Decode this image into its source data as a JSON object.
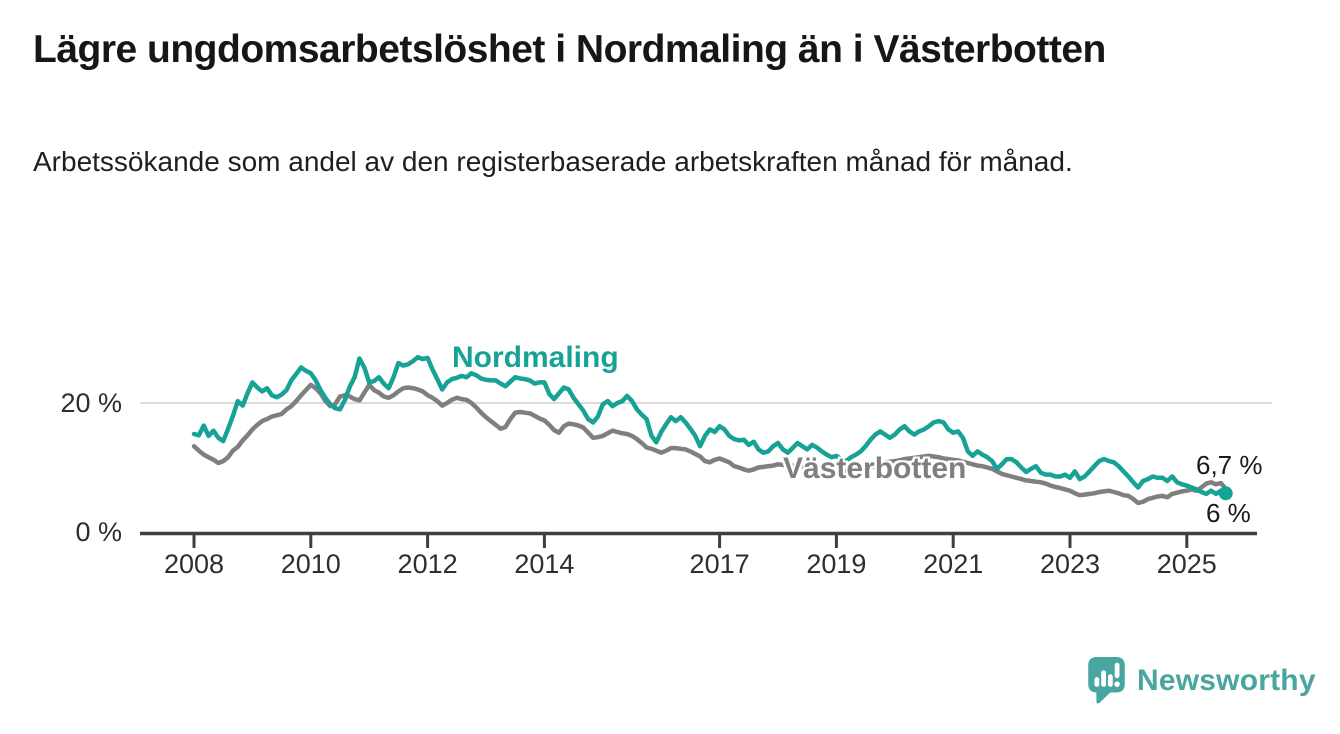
{
  "header": {
    "title": "Lägre ungdomsarbetslöshet i Nordmaling än i Västerbotten",
    "subtitle": "Arbetssökande som andel av den registerbaserade arbetskraften månad för månad."
  },
  "colors": {
    "nordmaling": "#17a296",
    "vasterbotten": "#7f7f7f",
    "axis": "#3f3f3f",
    "gridline": "#dcdcdc",
    "tick_text": "#2e2e2e",
    "logo_teal": "#48a59f"
  },
  "annotations": {
    "nordmaling_label": "Nordmaling",
    "vasterbotten_label": "Västerbotten",
    "end_label_top": "6,7 %",
    "end_label_bottom": "6 %"
  },
  "footer": {
    "brand": "Newsworthy"
  },
  "chart_data": {
    "type": "line",
    "title": "Lägre ungdomsarbetslöshet i Nordmaling än i Västerbotten",
    "unit": "%",
    "x_start_year": 2008,
    "points_per_year": 12,
    "x_end_decimal_year": 2025.67,
    "x_tick_years": [
      2008,
      2010,
      2012,
      2014,
      2017,
      2019,
      2021,
      2023,
      2025
    ],
    "y_ticks": [
      {
        "value": 0,
        "label": "0 %"
      },
      {
        "value": 20,
        "label": "20 %"
      }
    ],
    "ylim": [
      0,
      30
    ],
    "grid": "single horizontal gridline at 20 %",
    "legend_position": "inline labels on lines, end-value labels at right",
    "series": [
      {
        "name": "Nordmaling",
        "color": "#17a296",
        "end_label": "6 %",
        "end_value": 6.0,
        "end_dot": true,
        "values": [
          15.2,
          15.0,
          16.5,
          14.9,
          15.7,
          14.6,
          14.1,
          16.0,
          18.0,
          20.3,
          19.6,
          21.5,
          23.2,
          22.4,
          21.8,
          22.3,
          21.2,
          20.9,
          21.3,
          22.0,
          23.5,
          24.5,
          25.5,
          25.0,
          24.6,
          23.5,
          22.0,
          20.8,
          19.8,
          19.2,
          19.0,
          20.5,
          22.5,
          24.0,
          26.9,
          25.5,
          23.2,
          23.4,
          24.0,
          23.0,
          22.3,
          24.0,
          26.2,
          25.8,
          26.0,
          26.5,
          27.1,
          26.8,
          27.0,
          25.2,
          23.7,
          22.1,
          23.2,
          23.7,
          23.9,
          24.2,
          24.0,
          24.6,
          24.3,
          23.8,
          23.6,
          23.5,
          23.5,
          23.0,
          22.6,
          23.3,
          24.0,
          23.8,
          23.7,
          23.5,
          23.0,
          23.2,
          23.2,
          21.4,
          20.6,
          21.5,
          22.4,
          22.1,
          20.8,
          19.8,
          18.8,
          17.5,
          17.0,
          17.9,
          19.8,
          20.3,
          19.5,
          20.0,
          20.3,
          21.1,
          20.3,
          19.0,
          18.2,
          17.5,
          14.9,
          13.9,
          15.5,
          16.7,
          17.8,
          17.2,
          17.8,
          17.0,
          16.0,
          14.9,
          13.3,
          14.9,
          15.9,
          15.5,
          16.4,
          15.9,
          14.9,
          14.4,
          14.2,
          14.3,
          13.5,
          14.0,
          12.8,
          12.3,
          12.5,
          13.3,
          13.8,
          12.8,
          12.3,
          13.0,
          13.8,
          13.3,
          12.8,
          13.5,
          13.1,
          12.5,
          12.0,
          11.6,
          11.8,
          11.3,
          11.0,
          11.6,
          12.0,
          12.5,
          13.3,
          14.3,
          15.1,
          15.6,
          15.1,
          14.6,
          15.1,
          15.9,
          16.4,
          15.6,
          15.1,
          15.6,
          15.9,
          16.4,
          17.0,
          17.2,
          17.0,
          15.9,
          15.4,
          15.6,
          14.6,
          12.5,
          11.8,
          12.5,
          12.0,
          11.6,
          11.0,
          9.8,
          10.5,
          11.3,
          11.3,
          10.8,
          10.0,
          9.3,
          9.8,
          10.2,
          9.2,
          8.9,
          8.9,
          8.6,
          8.6,
          8.9,
          8.4,
          9.4,
          8.2,
          8.6,
          9.4,
          10.2,
          11.0,
          11.3,
          11.0,
          10.8,
          10.2,
          9.4,
          8.6,
          7.7,
          6.9,
          7.9,
          8.2,
          8.6,
          8.4,
          8.4,
          7.9,
          8.6,
          7.7,
          7.4,
          7.2,
          6.9,
          6.6,
          6.2,
          5.9,
          6.4,
          5.9,
          6.4,
          6.0
        ]
      },
      {
        "name": "Västerbotten",
        "color": "#7f7f7f",
        "end_label": "6,7 %",
        "end_value": 6.7,
        "end_dot": false,
        "values": [
          13.3,
          12.6,
          12.0,
          11.6,
          11.2,
          10.7,
          11.0,
          11.6,
          12.6,
          13.2,
          14.2,
          15.0,
          15.9,
          16.6,
          17.2,
          17.5,
          17.9,
          18.1,
          18.3,
          19.0,
          19.5,
          20.3,
          21.2,
          22.0,
          22.8,
          22.3,
          21.5,
          20.3,
          19.5,
          19.8,
          21.0,
          21.2,
          21.0,
          20.6,
          20.4,
          21.6,
          22.8,
          22.0,
          21.6,
          21.0,
          20.8,
          21.2,
          21.8,
          22.3,
          22.4,
          22.3,
          22.1,
          21.8,
          21.2,
          20.8,
          20.3,
          19.6,
          20.0,
          20.5,
          20.8,
          20.6,
          20.5,
          20.0,
          19.3,
          18.5,
          17.8,
          17.2,
          16.6,
          16.0,
          16.3,
          17.5,
          18.5,
          18.6,
          18.5,
          18.4,
          18.0,
          17.6,
          17.3,
          16.6,
          15.8,
          15.4,
          16.4,
          16.8,
          16.7,
          16.5,
          16.2,
          15.4,
          14.6,
          14.7,
          14.9,
          15.3,
          15.7,
          15.5,
          15.3,
          15.2,
          14.9,
          14.4,
          13.8,
          13.1,
          12.9,
          12.6,
          12.3,
          12.6,
          13.0,
          13.0,
          12.9,
          12.8,
          12.5,
          12.1,
          11.7,
          11.0,
          10.8,
          11.2,
          11.4,
          11.1,
          10.8,
          10.2,
          10.0,
          9.7,
          9.5,
          9.7,
          10.0,
          10.1,
          10.2,
          10.3,
          10.5,
          10.4,
          10.3,
          10.3,
          10.2,
          10.2,
          10.1,
          10.0,
          9.9,
          9.8,
          9.8,
          9.7,
          9.6,
          9.5,
          9.4,
          9.3,
          9.5,
          9.7,
          9.9,
          10.1,
          10.3,
          10.6,
          10.8,
          10.9,
          11.0,
          11.1,
          11.3,
          11.4,
          11.5,
          11.6,
          11.7,
          11.8,
          11.7,
          11.6,
          11.4,
          11.3,
          11.2,
          11.1,
          10.9,
          10.7,
          10.5,
          10.3,
          10.2,
          10.0,
          9.8,
          9.4,
          9.0,
          8.8,
          8.6,
          8.4,
          8.2,
          8.0,
          7.9,
          7.8,
          7.7,
          7.5,
          7.2,
          7.0,
          6.8,
          6.6,
          6.4,
          6.0,
          5.7,
          5.8,
          5.9,
          6.0,
          6.2,
          6.3,
          6.4,
          6.2,
          6.0,
          5.7,
          5.6,
          5.1,
          4.5,
          4.7,
          5.1,
          5.3,
          5.5,
          5.6,
          5.4,
          5.9,
          6.1,
          6.3,
          6.4,
          6.6,
          6.4,
          6.9,
          7.5,
          7.7,
          7.4,
          7.6,
          6.7
        ]
      }
    ]
  }
}
